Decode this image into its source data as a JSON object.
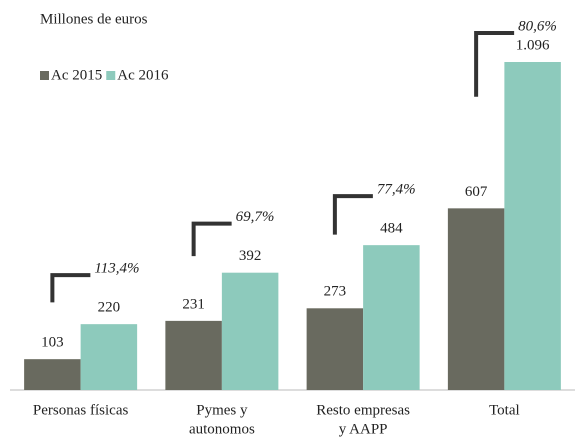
{
  "chart_data": {
    "type": "bar",
    "title": "Millones de euros",
    "categories": [
      [
        "Personas físicas"
      ],
      [
        "Pymes y",
        "autonomos"
      ],
      [
        "Resto empresas",
        "y AAPP"
      ],
      [
        "Total"
      ]
    ],
    "series": [
      {
        "name": "Ac 2015",
        "color": "#696a5f",
        "values": [
          103,
          231,
          273,
          607
        ]
      },
      {
        "name": "Ac 2016",
        "color": "#8dcabc",
        "values": [
          220,
          392,
          484,
          1096
        ],
        "value_labels": [
          "220",
          "392",
          "484",
          "1.096"
        ]
      }
    ],
    "annotations": [
      {
        "value": 113.4,
        "label": "113,4%"
      },
      {
        "value": 69.7,
        "label": "69,7%"
      },
      {
        "value": 77.4,
        "label": "77,4%"
      },
      {
        "value": 80.6,
        "label": "80,6%"
      }
    ],
    "legend": "top-left"
  }
}
